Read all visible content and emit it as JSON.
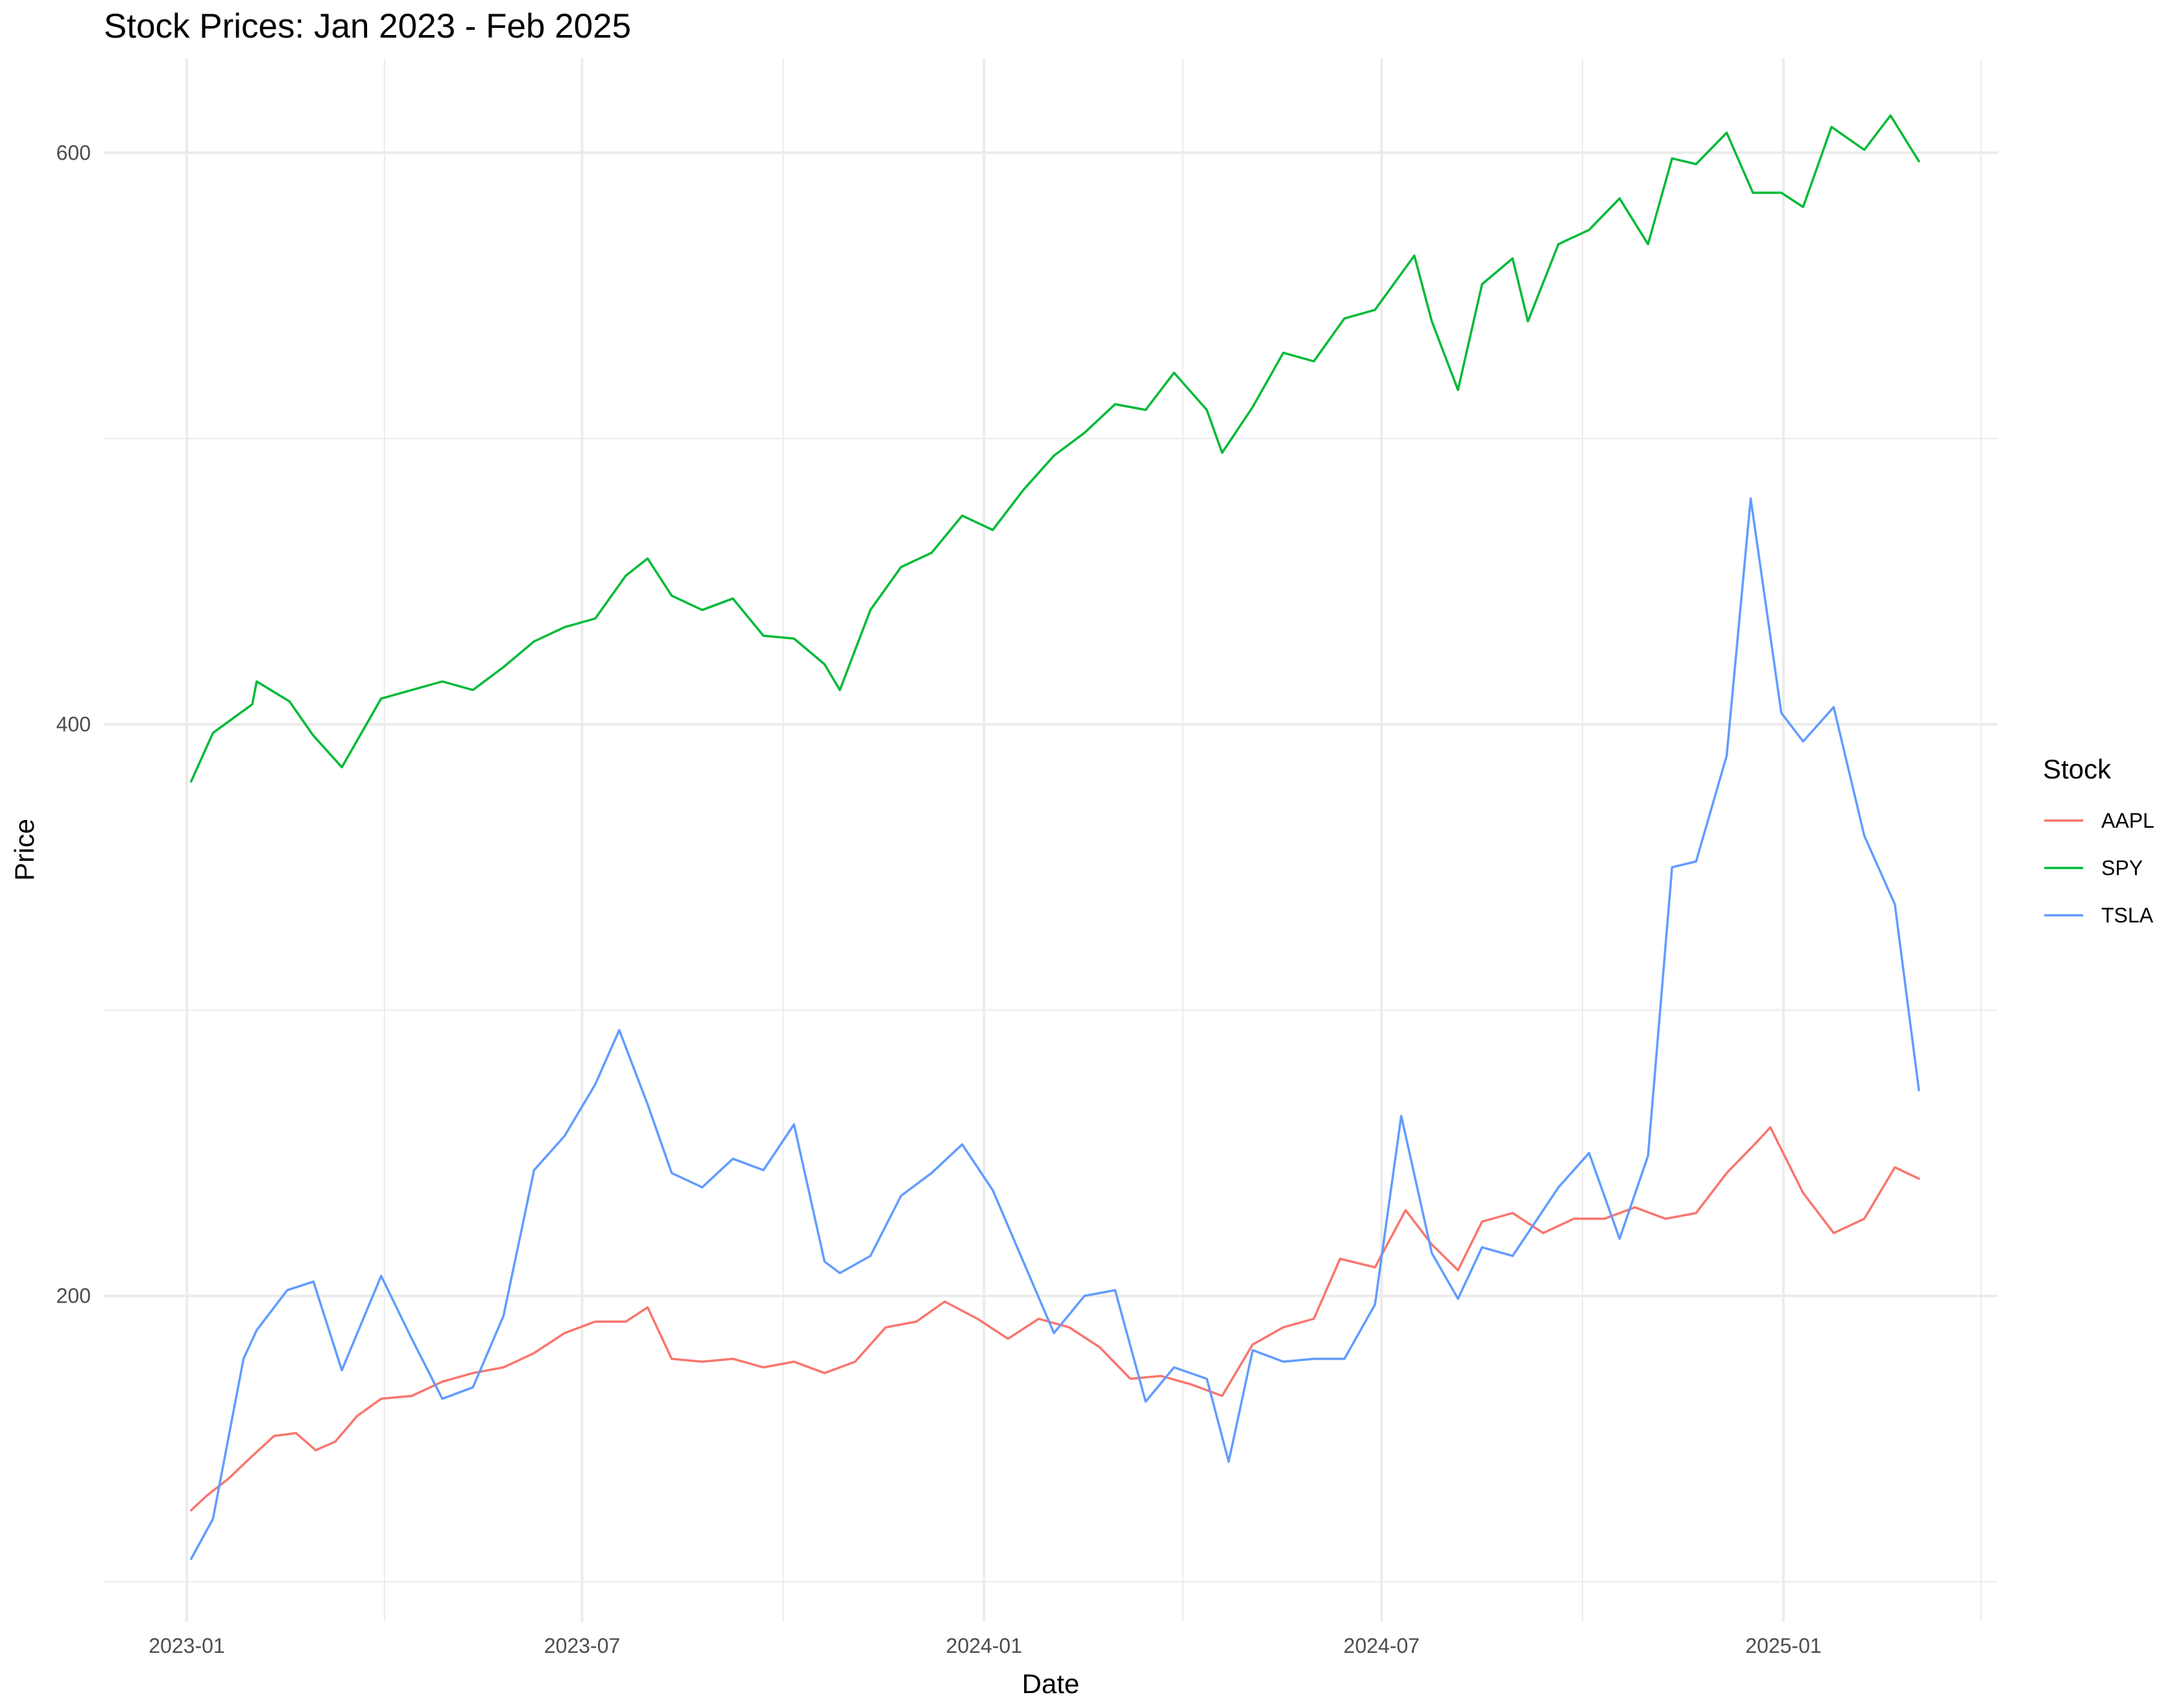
{
  "chart_data": {
    "type": "line",
    "title": "Stock Prices: Jan 2023 - Feb 2025",
    "xlabel": "Date",
    "ylabel": "Price",
    "x_ticks": [
      "2023-01",
      "2023-07",
      "2024-01",
      "2024-07",
      "2025-01"
    ],
    "x_range": [
      "2022-11-24",
      "2025-04-09"
    ],
    "y_ticks": [
      200,
      400,
      600
    ],
    "ylim": [
      86,
      633
    ],
    "grid": true,
    "legend": {
      "title": "Stock",
      "position": "right"
    },
    "series": [
      {
        "name": "AAPL",
        "color": "#F8766D",
        "points": [
          [
            "2023-01-03",
            125
          ],
          [
            "2023-01-10",
            130
          ],
          [
            "2023-01-20",
            136
          ],
          [
            "2023-01-31",
            144
          ],
          [
            "2023-02-10",
            151
          ],
          [
            "2023-02-20",
            152
          ],
          [
            "2023-03-01",
            146
          ],
          [
            "2023-03-10",
            149
          ],
          [
            "2023-03-20",
            158
          ],
          [
            "2023-03-31",
            164
          ],
          [
            "2023-04-14",
            165
          ],
          [
            "2023-04-28",
            170
          ],
          [
            "2023-05-12",
            173
          ],
          [
            "2023-05-26",
            175
          ],
          [
            "2023-06-09",
            180
          ],
          [
            "2023-06-23",
            187
          ],
          [
            "2023-07-07",
            191
          ],
          [
            "2023-07-21",
            191
          ],
          [
            "2023-07-31",
            196
          ],
          [
            "2023-08-11",
            178
          ],
          [
            "2023-08-25",
            177
          ],
          [
            "2023-09-08",
            178
          ],
          [
            "2023-09-22",
            175
          ],
          [
            "2023-10-06",
            177
          ],
          [
            "2023-10-20",
            173
          ],
          [
            "2023-11-03",
            177
          ],
          [
            "2023-11-17",
            189
          ],
          [
            "2023-12-01",
            191
          ],
          [
            "2023-12-14",
            198
          ],
          [
            "2023-12-29",
            192
          ],
          [
            "2024-01-12",
            185
          ],
          [
            "2024-01-26",
            192
          ],
          [
            "2024-02-09",
            189
          ],
          [
            "2024-02-23",
            182
          ],
          [
            "2024-03-08",
            171
          ],
          [
            "2024-03-22",
            172
          ],
          [
            "2024-04-05",
            169
          ],
          [
            "2024-04-19",
            165
          ],
          [
            "2024-05-03",
            183
          ],
          [
            "2024-05-17",
            189
          ],
          [
            "2024-05-31",
            192
          ],
          [
            "2024-06-12",
            213
          ],
          [
            "2024-06-28",
            210
          ],
          [
            "2024-07-12",
            230
          ],
          [
            "2024-07-24",
            218
          ],
          [
            "2024-08-05",
            209
          ],
          [
            "2024-08-16",
            226
          ],
          [
            "2024-08-30",
            229
          ],
          [
            "2024-09-13",
            222
          ],
          [
            "2024-09-27",
            227
          ],
          [
            "2024-10-11",
            227
          ],
          [
            "2024-10-25",
            231
          ],
          [
            "2024-11-08",
            227
          ],
          [
            "2024-11-22",
            229
          ],
          [
            "2024-12-06",
            243
          ],
          [
            "2024-12-20",
            254
          ],
          [
            "2024-12-26",
            259
          ],
          [
            "2025-01-10",
            236
          ],
          [
            "2025-01-24",
            222
          ],
          [
            "2025-02-07",
            227
          ],
          [
            "2025-02-21",
            245
          ],
          [
            "2025-03-04",
            241
          ]
        ]
      },
      {
        "name": "SPY",
        "color": "#00BA38",
        "points": [
          [
            "2023-01-03",
            380
          ],
          [
            "2023-01-13",
            397
          ],
          [
            "2023-01-31",
            407
          ],
          [
            "2023-02-02",
            415
          ],
          [
            "2023-02-17",
            408
          ],
          [
            "2023-02-28",
            396
          ],
          [
            "2023-03-13",
            385
          ],
          [
            "2023-03-31",
            409
          ],
          [
            "2023-04-14",
            412
          ],
          [
            "2023-04-28",
            415
          ],
          [
            "2023-05-12",
            412
          ],
          [
            "2023-05-26",
            420
          ],
          [
            "2023-06-09",
            429
          ],
          [
            "2023-06-23",
            434
          ],
          [
            "2023-07-07",
            437
          ],
          [
            "2023-07-21",
            452
          ],
          [
            "2023-07-31",
            458
          ],
          [
            "2023-08-11",
            445
          ],
          [
            "2023-08-25",
            440
          ],
          [
            "2023-09-08",
            444
          ],
          [
            "2023-09-22",
            431
          ],
          [
            "2023-10-06",
            430
          ],
          [
            "2023-10-20",
            421
          ],
          [
            "2023-10-27",
            412
          ],
          [
            "2023-11-10",
            440
          ],
          [
            "2023-11-24",
            455
          ],
          [
            "2023-12-08",
            460
          ],
          [
            "2023-12-22",
            473
          ],
          [
            "2024-01-05",
            468
          ],
          [
            "2024-01-19",
            482
          ],
          [
            "2024-02-02",
            494
          ],
          [
            "2024-02-16",
            502
          ],
          [
            "2024-03-01",
            512
          ],
          [
            "2024-03-15",
            510
          ],
          [
            "2024-03-28",
            523
          ],
          [
            "2024-04-12",
            510
          ],
          [
            "2024-04-19",
            495
          ],
          [
            "2024-05-03",
            511
          ],
          [
            "2024-05-17",
            530
          ],
          [
            "2024-05-31",
            527
          ],
          [
            "2024-06-14",
            542
          ],
          [
            "2024-06-28",
            545
          ],
          [
            "2024-07-16",
            564
          ],
          [
            "2024-07-24",
            541
          ],
          [
            "2024-08-05",
            517
          ],
          [
            "2024-08-16",
            554
          ],
          [
            "2024-08-30",
            563
          ],
          [
            "2024-09-06",
            541
          ],
          [
            "2024-09-20",
            568
          ],
          [
            "2024-10-04",
            573
          ],
          [
            "2024-10-18",
            584
          ],
          [
            "2024-10-31",
            568
          ],
          [
            "2024-11-11",
            598
          ],
          [
            "2024-11-22",
            596
          ],
          [
            "2024-12-06",
            607
          ],
          [
            "2024-12-18",
            586
          ],
          [
            "2024-12-31",
            586
          ],
          [
            "2025-01-10",
            581
          ],
          [
            "2025-01-23",
            609
          ],
          [
            "2025-02-07",
            601
          ],
          [
            "2025-02-19",
            613
          ],
          [
            "2025-03-04",
            597
          ]
        ]
      },
      {
        "name": "TSLA",
        "color": "#619CFF",
        "points": [
          [
            "2023-01-03",
            108
          ],
          [
            "2023-01-13",
            122
          ],
          [
            "2023-01-27",
            178
          ],
          [
            "2023-02-02",
            188
          ],
          [
            "2023-02-16",
            202
          ],
          [
            "2023-02-28",
            205
          ],
          [
            "2023-03-13",
            174
          ],
          [
            "2023-03-31",
            207
          ],
          [
            "2023-04-14",
            185
          ],
          [
            "2023-04-28",
            164
          ],
          [
            "2023-05-12",
            168
          ],
          [
            "2023-05-26",
            193
          ],
          [
            "2023-06-09",
            244
          ],
          [
            "2023-06-23",
            256
          ],
          [
            "2023-07-07",
            274
          ],
          [
            "2023-07-18",
            293
          ],
          [
            "2023-07-31",
            267
          ],
          [
            "2023-08-11",
            243
          ],
          [
            "2023-08-25",
            238
          ],
          [
            "2023-09-08",
            248
          ],
          [
            "2023-09-22",
            244
          ],
          [
            "2023-10-06",
            260
          ],
          [
            "2023-10-20",
            212
          ],
          [
            "2023-10-27",
            208
          ],
          [
            "2023-11-10",
            214
          ],
          [
            "2023-11-24",
            235
          ],
          [
            "2023-12-08",
            243
          ],
          [
            "2023-12-22",
            253
          ],
          [
            "2024-01-05",
            237
          ],
          [
            "2024-01-19",
            212
          ],
          [
            "2024-02-02",
            187
          ],
          [
            "2024-02-16",
            200
          ],
          [
            "2024-03-01",
            202
          ],
          [
            "2024-03-15",
            163
          ],
          [
            "2024-03-28",
            175
          ],
          [
            "2024-04-12",
            171
          ],
          [
            "2024-04-22",
            142
          ],
          [
            "2024-05-03",
            181
          ],
          [
            "2024-05-17",
            177
          ],
          [
            "2024-05-31",
            178
          ],
          [
            "2024-06-14",
            178
          ],
          [
            "2024-06-28",
            197
          ],
          [
            "2024-07-10",
            263
          ],
          [
            "2024-07-24",
            215
          ],
          [
            "2024-08-05",
            199
          ],
          [
            "2024-08-16",
            217
          ],
          [
            "2024-08-30",
            214
          ],
          [
            "2024-09-13",
            230
          ],
          [
            "2024-09-20",
            238
          ],
          [
            "2024-10-04",
            250
          ],
          [
            "2024-10-18",
            220
          ],
          [
            "2024-10-31",
            249
          ],
          [
            "2024-11-11",
            350
          ],
          [
            "2024-11-22",
            352
          ],
          [
            "2024-12-06",
            389
          ],
          [
            "2024-12-17",
            479
          ],
          [
            "2024-12-31",
            404
          ],
          [
            "2025-01-10",
            394
          ],
          [
            "2025-01-24",
            406
          ],
          [
            "2025-02-07",
            361
          ],
          [
            "2025-02-21",
            337
          ],
          [
            "2025-03-04",
            272
          ]
        ]
      }
    ]
  }
}
